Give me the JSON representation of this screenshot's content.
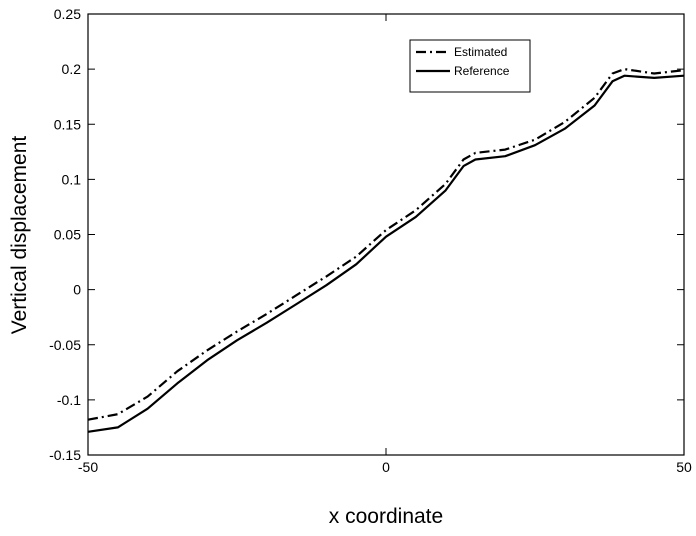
{
  "chart_data": {
    "type": "line",
    "xlabel": "x coordinate",
    "ylabel": "Vertical displacement",
    "x": [
      -50,
      -45,
      -40,
      -35,
      -30,
      -25,
      -20,
      -15,
      -10,
      -5,
      0,
      5,
      10,
      13,
      15,
      20,
      25,
      30,
      35,
      38,
      40,
      45,
      50
    ],
    "series": [
      {
        "name": "Estimated",
        "color": "#000000",
        "linestyle": "dashdot",
        "values": [
          -0.118,
          -0.113,
          -0.097,
          -0.074,
          -0.055,
          -0.038,
          -0.022,
          -0.005,
          0.012,
          0.03,
          0.054,
          0.072,
          0.096,
          0.118,
          0.124,
          0.127,
          0.136,
          0.152,
          0.174,
          0.196,
          0.2,
          0.196,
          0.199
        ]
      },
      {
        "name": "Reference",
        "color": "#000000",
        "linestyle": "solid",
        "values": [
          -0.129,
          -0.125,
          -0.108,
          -0.085,
          -0.064,
          -0.046,
          -0.03,
          -0.013,
          0.004,
          0.023,
          0.048,
          0.066,
          0.09,
          0.112,
          0.118,
          0.121,
          0.131,
          0.146,
          0.167,
          0.189,
          0.194,
          0.192,
          0.194
        ]
      }
    ],
    "xlim": [
      -50,
      50
    ],
    "xticks": [
      -50,
      0,
      50
    ],
    "ylim": [
      -0.15,
      0.25
    ],
    "yticks": [
      -0.15,
      -0.1,
      -0.05,
      0,
      0.05,
      0.1,
      0.15,
      0.2,
      0.25
    ],
    "grid": false,
    "legend": "upper-right"
  }
}
